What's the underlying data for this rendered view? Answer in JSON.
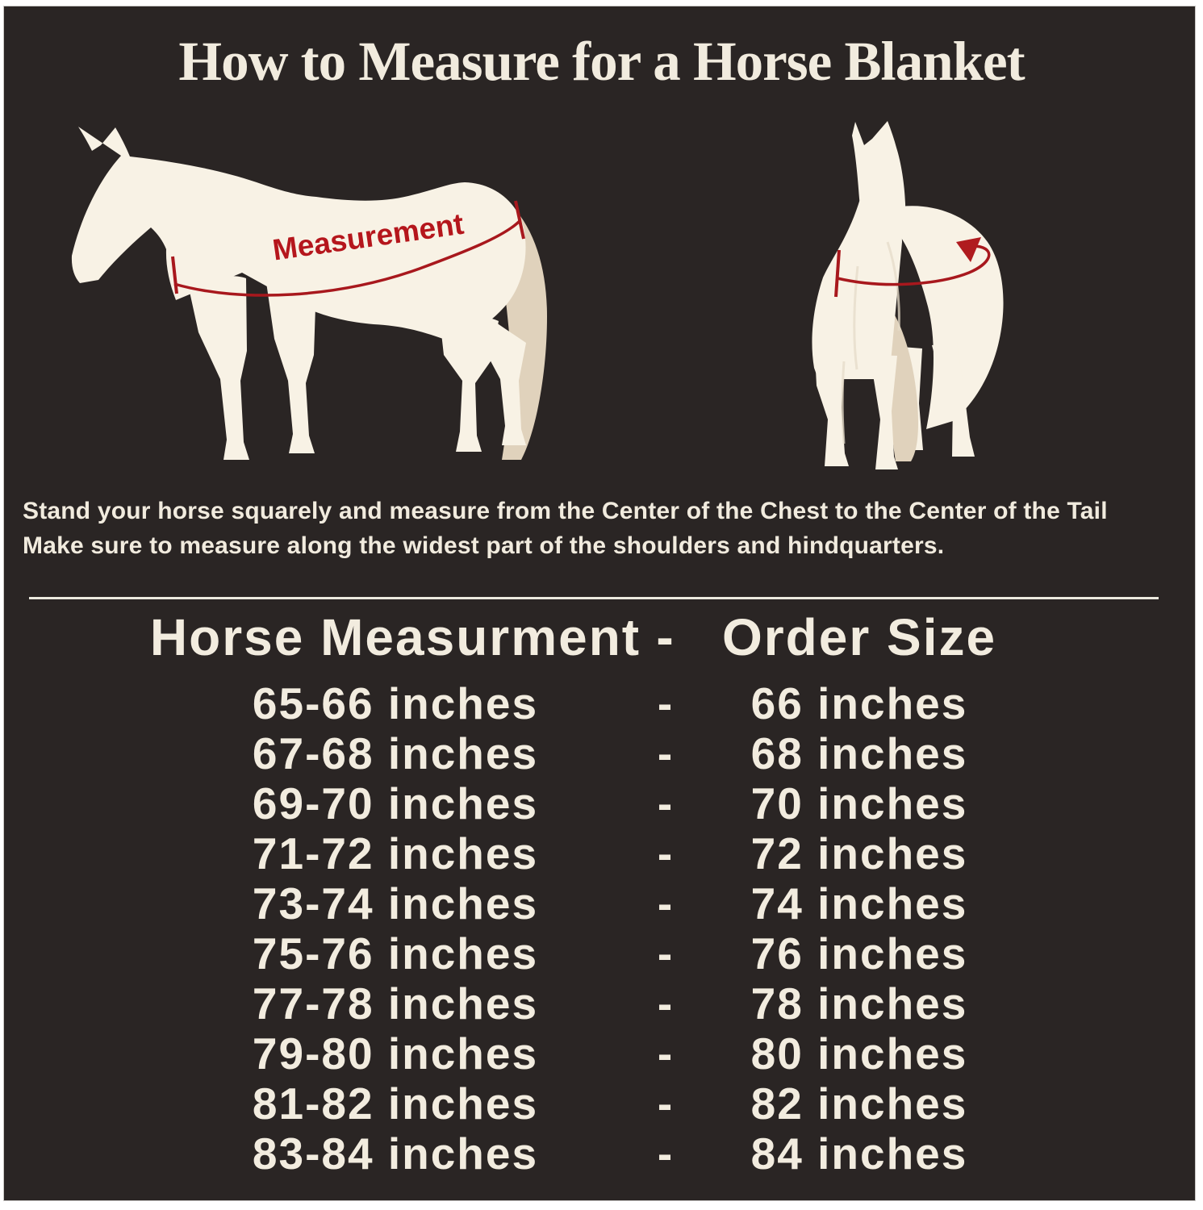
{
  "page": {
    "title": "How to Measure for a Horse Blanket",
    "instructions_line1": "Stand your horse squarely and measure from the Center of the Chest to the Center of the Tail",
    "instructions_line2": "Make sure to measure along the widest part of the shoulders and hindquarters.",
    "measurement_label": "Measurement"
  },
  "size_table": {
    "header": {
      "measurement": "Horse Measurment",
      "separator": "-",
      "order": "Order Size"
    },
    "rows": [
      {
        "measurement": "65-66 inches",
        "separator": "-",
        "order": "66 inches"
      },
      {
        "measurement": "67-68 inches",
        "separator": "-",
        "order": "68 inches"
      },
      {
        "measurement": "69-70 inches",
        "separator": "-",
        "order": "70 inches"
      },
      {
        "measurement": "71-72 inches",
        "separator": "-",
        "order": "72 inches"
      },
      {
        "measurement": "73-74 inches",
        "separator": "-",
        "order": "74 inches"
      },
      {
        "measurement": "75-76 inches",
        "separator": "-",
        "order": "76 inches"
      },
      {
        "measurement": "77-78 inches",
        "separator": "-",
        "order": "78 inches"
      },
      {
        "measurement": "79-80 inches",
        "separator": "-",
        "order": "80 inches"
      },
      {
        "measurement": "81-82 inches",
        "separator": "-",
        "order": "82 inches"
      },
      {
        "measurement": "83-84 inches",
        "separator": "-",
        "order": "84 inches"
      }
    ]
  },
  "colors": {
    "panel_background": "#2a2524",
    "page_border": "#ffffff",
    "cream_text": "#f1ebde",
    "horse_body": "#f8f2e5",
    "horse_tail": "#e0d2bc",
    "horse_shading": "#e6dcc9",
    "measurement_red": "#a8181d",
    "label_red": "#b5161c",
    "divider": "#eceadf"
  }
}
